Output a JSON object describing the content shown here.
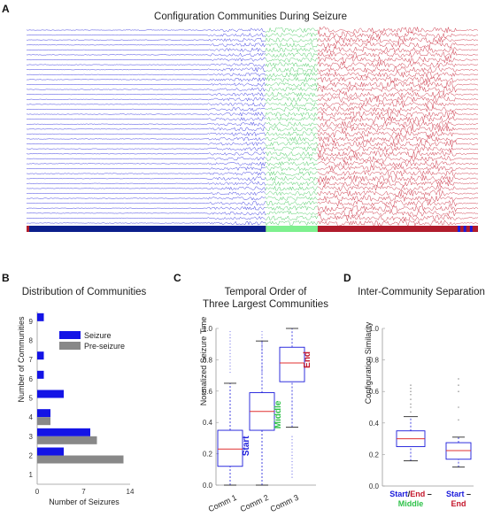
{
  "colors": {
    "start": "#1a1adb",
    "middle": "#2fc24a",
    "end": "#c4162b",
    "seizure": "#1414e6",
    "preseizure": "#888888",
    "median": "#e03030",
    "middle_bar": "#7ef08f",
    "start_bar": "#0b1f8c",
    "end_bar": "#b01c2c"
  },
  "panels": {
    "A": "A",
    "B": "B",
    "C": "C",
    "D": "D"
  },
  "chart_data": [
    {
      "id": "A",
      "type": "line",
      "title": "Configuration Communities During Seizure",
      "n_channels": 40,
      "segments": [
        {
          "community": "Start",
          "from": 0.0,
          "to": 0.53
        },
        {
          "community": "Middle",
          "from": 0.53,
          "to": 0.645
        },
        {
          "community": "End",
          "from": 0.645,
          "to": 1.0
        }
      ]
    },
    {
      "id": "B",
      "type": "bar",
      "title": "Distribution of Communities",
      "xlabel": "Number of Seizures",
      "ylabel": "Number of Communities",
      "categories": [
        "1",
        "2",
        "3",
        "4",
        "5",
        "6",
        "7",
        "8",
        "9"
      ],
      "xlim": [
        0,
        14
      ],
      "xticks": [
        "0",
        "7",
        "14"
      ],
      "series": [
        {
          "name": "Seizure",
          "values": [
            0,
            4,
            8,
            2,
            4,
            1,
            1,
            0,
            1
          ]
        },
        {
          "name": "Pre-seizure",
          "values": [
            0,
            13,
            9,
            2,
            0,
            0,
            0,
            0,
            0
          ]
        }
      ],
      "legend": "top-right"
    },
    {
      "id": "C",
      "type": "box",
      "title": [
        "Temporal Order of",
        "Three Largest Communities"
      ],
      "ylabel": "Normalized Seizure Time",
      "ylim": [
        0,
        1
      ],
      "yticks": [
        "0.0",
        "0.2",
        "0.4",
        "0.6",
        "0.8",
        "1.0"
      ],
      "categories": [
        "Comm 1",
        "Comm 2",
        "Comm 3"
      ],
      "annotations": [
        "Start",
        "Middle",
        "End"
      ],
      "boxes": [
        {
          "whislo": 0.0,
          "q1": 0.12,
          "med": 0.23,
          "q3": 0.35,
          "whishi": 0.65
        },
        {
          "whislo": 0.0,
          "q1": 0.35,
          "med": 0.47,
          "q3": 0.59,
          "whishi": 0.92
        },
        {
          "whislo": 0.37,
          "q1": 0.66,
          "med": 0.78,
          "q3": 0.88,
          "whishi": 1.0
        }
      ]
    },
    {
      "id": "D",
      "type": "box",
      "title": "Inter-Community Separation",
      "ylabel": "Configuration Similarity",
      "ylim": [
        0,
        1
      ],
      "yticks": [
        "0.0",
        "0.2",
        "0.4",
        "0.6",
        "0.8",
        "1.0"
      ],
      "groups": [
        {
          "parts": [
            [
              "Start",
              "start"
            ],
            [
              "/",
              "black"
            ],
            [
              "End",
              "end"
            ],
            [
              " –",
              "black"
            ]
          ],
          "line2": [
            [
              "Middle",
              "middle"
            ]
          ],
          "whislo": 0.16,
          "q1": 0.25,
          "med": 0.3,
          "q3": 0.35,
          "whishi": 0.44,
          "fliers": [
            0.47,
            0.5,
            0.52,
            0.55,
            0.58,
            0.6,
            0.62,
            0.64
          ]
        },
        {
          "parts": [
            [
              "Start",
              "start"
            ],
            [
              " –",
              "black"
            ]
          ],
          "line2": [
            [
              "End",
              "end"
            ]
          ],
          "whislo": 0.12,
          "q1": 0.17,
          "med": 0.225,
          "q3": 0.275,
          "whishi": 0.31,
          "fliers": [
            0.42,
            0.5,
            0.6,
            0.64,
            0.68
          ]
        }
      ]
    }
  ]
}
